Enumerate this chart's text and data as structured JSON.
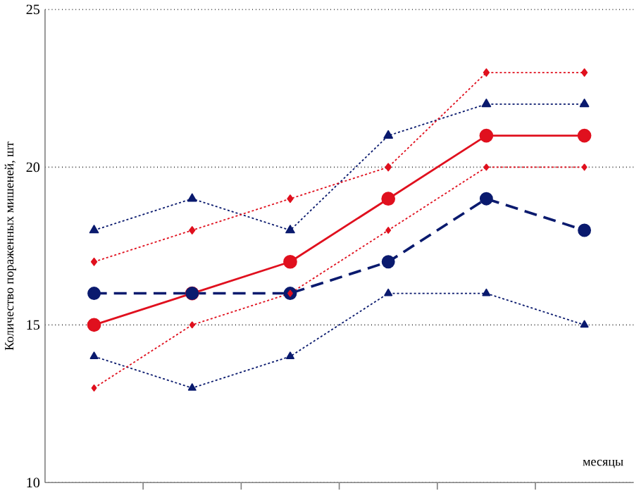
{
  "chart_data": {
    "type": "line",
    "ylabel": "Количество пораженных мишеней, шт",
    "xlabel": "месяцы",
    "categories": [
      null,
      null,
      null,
      null,
      null,
      null
    ],
    "ylim": [
      10,
      25
    ],
    "yticks": [
      10,
      15,
      20,
      25
    ],
    "grid": "y",
    "series": [
      {
        "color": "#e0101e",
        "values": [
          15,
          16,
          17,
          19,
          21,
          21
        ],
        "marker": "circle",
        "line_style": "solid"
      },
      {
        "color": "#0a1a6e",
        "values": [
          16,
          16,
          16,
          17,
          19,
          18
        ],
        "marker": "circle",
        "line_style": "dashed"
      },
      {
        "color": "#0a1a6e",
        "values": [
          18,
          19,
          18,
          21,
          22,
          22
        ],
        "marker": "triangle",
        "line_style": "dotted"
      },
      {
        "color": "#0a1a6e",
        "values": [
          14,
          13,
          14,
          16,
          16,
          15
        ],
        "marker": "triangle",
        "line_style": "dotted"
      },
      {
        "color": "#e0101e",
        "values": [
          17,
          18,
          19,
          20,
          23,
          23
        ],
        "marker": "diamond",
        "line_style": "dotted"
      },
      {
        "color": "#e0101e",
        "values": [
          13,
          15,
          16,
          18,
          20,
          20
        ],
        "marker": "diamond",
        "line_style": "dotted"
      }
    ]
  }
}
